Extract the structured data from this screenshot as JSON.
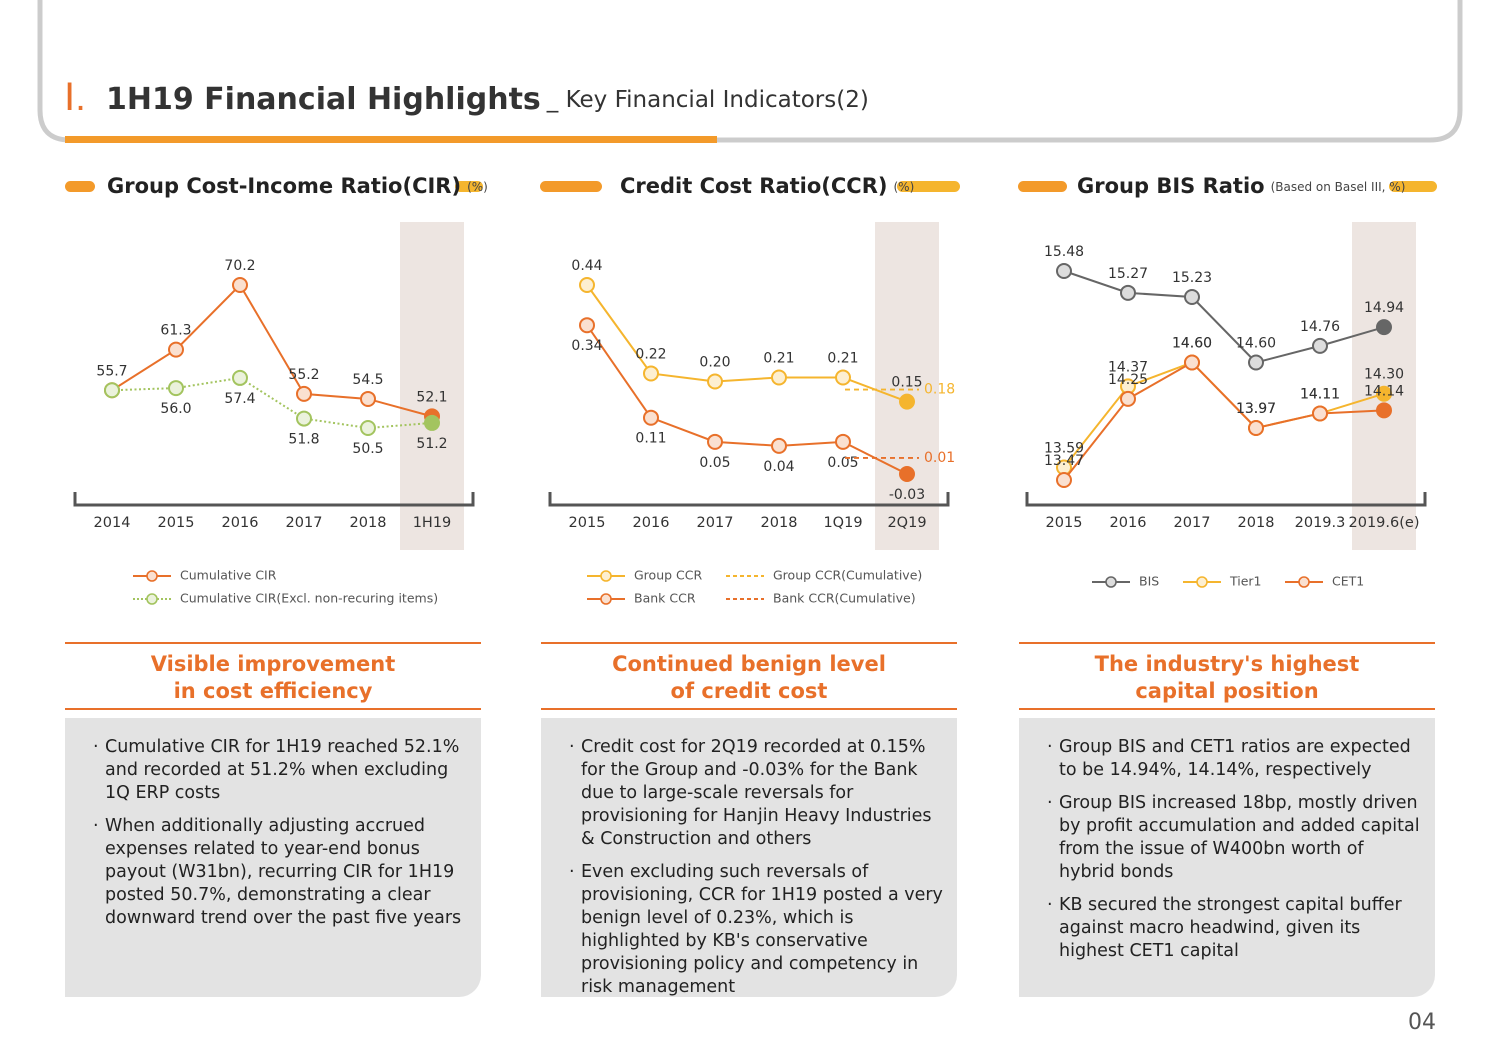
{
  "header": {
    "section": "Ⅰ.",
    "title": "1H19 Financial Highlights",
    "subtitle": "_ Key Financial Indicators(2)"
  },
  "chart_data": [
    {
      "type": "line",
      "title": "Group Cost-Income Ratio(CIR)",
      "unit": "(%)",
      "categories": [
        "2014",
        "2015",
        "2016",
        "2017",
        "2018",
        "1H19"
      ],
      "series": [
        {
          "name": "Cumulative CIR",
          "color": "#e8702a",
          "values": [
            55.7,
            61.3,
            70.2,
            55.2,
            54.5,
            52.1
          ]
        },
        {
          "name": "Cumulative CIR(Excl. non-recuring items)",
          "color": "#a3c45f",
          "dotted": true,
          "values": [
            55.7,
            56.0,
            57.4,
            51.8,
            50.5,
            51.2
          ],
          "value_labels": [
            "55.7",
            "56.0",
            "57.4",
            "51.8",
            "50.5",
            "51.2"
          ]
        }
      ]
    },
    {
      "type": "line",
      "title": "Credit Cost Ratio(CCR)",
      "unit": "(%)",
      "categories": [
        "2015",
        "2016",
        "2017",
        "2018",
        "1Q19",
        "2Q19"
      ],
      "series": [
        {
          "name": "Group CCR",
          "color": "#f5b52e",
          "values": [
            0.44,
            0.22,
            0.2,
            0.21,
            0.21,
            0.15
          ],
          "value_labels": [
            "0.44",
            "0.22",
            "0.20",
            "0.21",
            "0.21",
            "0.15"
          ]
        },
        {
          "name": "Bank CCR",
          "color": "#e8702a",
          "values": [
            0.34,
            0.11,
            0.05,
            0.04,
            0.05,
            -0.03
          ]
        },
        {
          "name": "Group CCR(Cumulative)",
          "color": "#f5b52e",
          "dashed": true,
          "values": [
            null,
            null,
            null,
            null,
            null,
            0.18
          ]
        },
        {
          "name": "Bank CCR(Cumulative)",
          "color": "#e8702a",
          "dashed": true,
          "values": [
            null,
            null,
            null,
            null,
            null,
            0.01
          ]
        }
      ]
    },
    {
      "type": "line",
      "title": "Group BIS Ratio",
      "unit": "(Based on Basel III, %)",
      "categories": [
        "2015",
        "2016",
        "2017",
        "2018",
        "2019.3",
        "2019.6(e)"
      ],
      "series": [
        {
          "name": "BIS",
          "color": "#666666",
          "values": [
            15.48,
            15.27,
            15.23,
            14.6,
            14.76,
            14.94
          ],
          "value_labels": [
            "15.48",
            "15.27",
            "15.23",
            "14.60",
            "14.76",
            "14.94"
          ]
        },
        {
          "name": "Tier1",
          "color": "#f5b52e",
          "values": [
            13.59,
            14.37,
            14.6,
            13.97,
            14.11,
            14.3
          ],
          "value_labels": [
            "13.59",
            "14.37",
            "14.60",
            "13.97",
            "14.11",
            "14.30"
          ]
        },
        {
          "name": "CET1",
          "color": "#e8702a",
          "values": [
            13.47,
            14.25,
            14.6,
            13.97,
            14.11,
            14.14
          ],
          "value_labels": [
            "13.47",
            "14.25",
            "14.60",
            "13.97",
            "14.11",
            "14.14"
          ]
        }
      ]
    }
  ],
  "panels": [
    {
      "headline": [
        "Visible improvement",
        "in cost efficiency"
      ],
      "bullets": [
        "Cumulative CIR for 1H19 reached 52.1% and recorded at 51.2% when excluding 1Q ERP costs",
        "When additionally adjusting accrued expenses related to year-end bonus payout (W31bn), recurring CIR for 1H19 posted 50.7%, demonstrating a clear downward trend over the past five years"
      ]
    },
    {
      "headline": [
        "Continued benign level",
        "of credit cost"
      ],
      "bullets": [
        "Credit cost for 2Q19 recorded at 0.15% for the Group and -0.03% for the Bank due to large-scale reversals for provisioning for Hanjin Heavy Industries & Construction and others",
        "Even excluding such reversals of provisioning, CCR for 1H19 posted a very benign level of 0.23%, which is highlighted by KB's conservative provisioning policy and competency in risk management"
      ]
    },
    {
      "headline": [
        "The industry's highest",
        "capital position"
      ],
      "bullets": [
        "Group BIS and CET1 ratios are expected to be 14.94%, 14.14%, respectively",
        "Group BIS increased 18bp, mostly driven by profit accumulation and added capital from the issue of W400bn worth of hybrid bonds",
        "KB secured the strongest capital buffer against macro headwind, given its highest CET1 capital"
      ]
    }
  ],
  "page_number": "04"
}
